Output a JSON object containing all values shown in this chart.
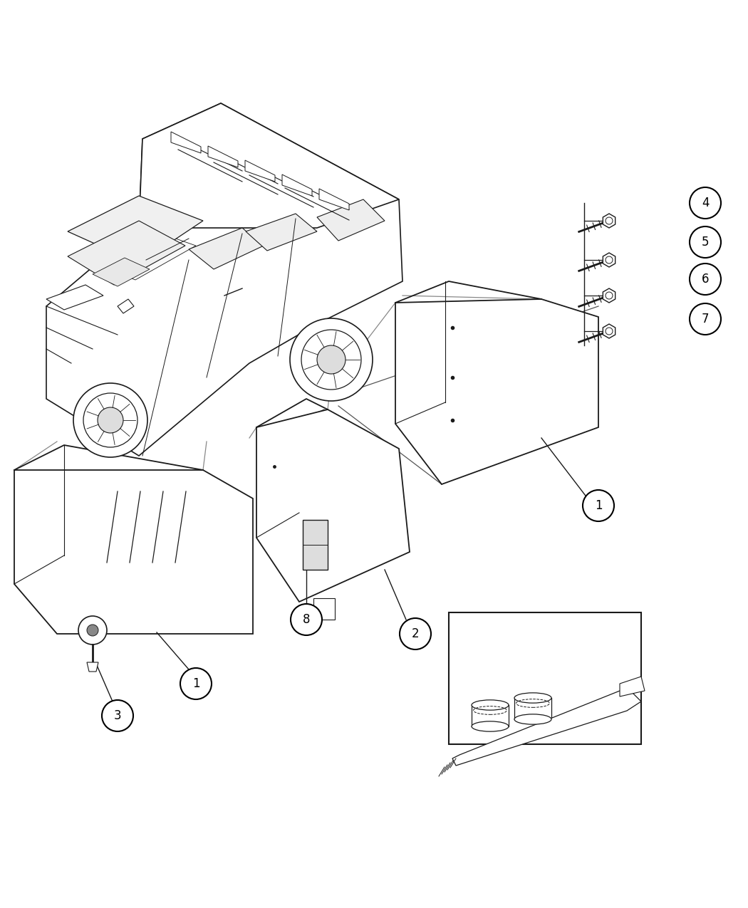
{
  "background_color": "#ffffff",
  "fig_width": 10.5,
  "fig_height": 12.75,
  "dpi": 100,
  "line_color": "#1a1a1a",
  "panel_color": "#444444"
}
